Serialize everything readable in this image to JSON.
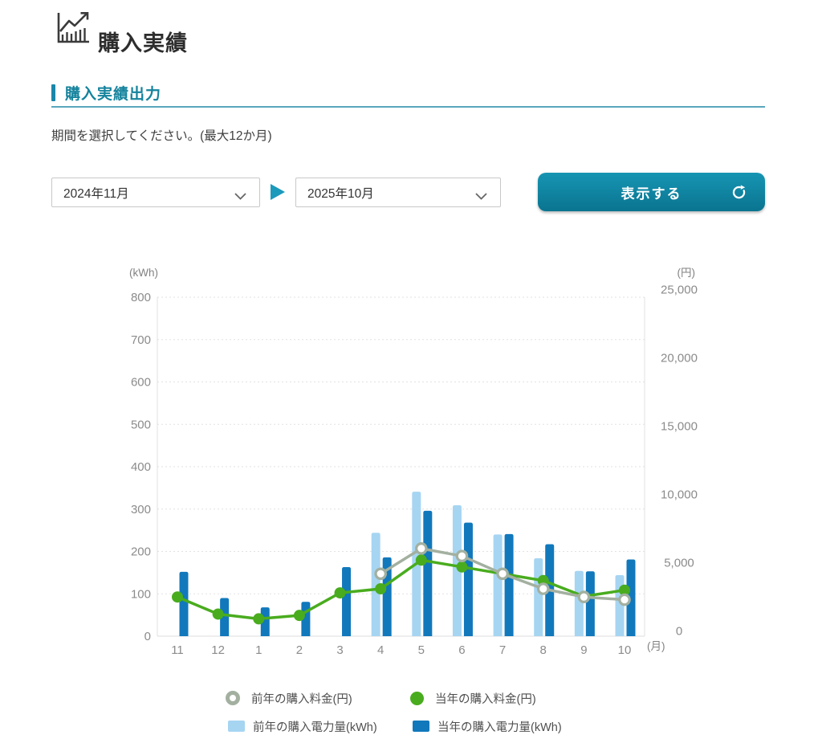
{
  "header": {
    "title": "購入実績"
  },
  "section": {
    "title": "購入実績出力"
  },
  "period": {
    "instruction": "期間を選択してください。(最大12か月)",
    "from_value": "2024年11月",
    "to_value": "2025年10月",
    "show_button_label": "表示する"
  },
  "chart_data": {
    "type": "bar-line-combo",
    "categories": [
      "11",
      "12",
      "1",
      "2",
      "3",
      "4",
      "5",
      "6",
      "7",
      "8",
      "9",
      "10"
    ],
    "x_unit": "(月)",
    "left_axis": {
      "unit": "(kWh)",
      "min": 0,
      "max": 800,
      "step": 100,
      "ticks": [
        "0",
        "100",
        "200",
        "300",
        "400",
        "500",
        "600",
        "700",
        "800"
      ],
      "applies_to": "bars"
    },
    "right_axis": {
      "unit": "(円)",
      "min": 0,
      "max": 25000,
      "step": 5000,
      "ticks": [
        "0",
        "5,000",
        "10,000",
        "15,000",
        "20,000",
        "25,000"
      ],
      "applies_to": "lines"
    },
    "grid": "horizontal-dashed",
    "legend_position": "bottom",
    "series": [
      {
        "name": "前年の購入電力量(kWh)",
        "type": "bar",
        "axis": "left",
        "slot": "left",
        "color": "#A6D5F2",
        "values": [
          null,
          null,
          null,
          null,
          null,
          244,
          341,
          309,
          240,
          184,
          154,
          144
        ]
      },
      {
        "name": "当年の購入電力量(kWh)",
        "type": "bar",
        "axis": "left",
        "slot": "right",
        "color": "#1178BC",
        "values": [
          152,
          90,
          68,
          81,
          163,
          186,
          296,
          268,
          241,
          217,
          153,
          181
        ]
      },
      {
        "name": "前年の購入料金(円)",
        "type": "line",
        "axis": "right",
        "point": "open",
        "color": "#A3B0A0",
        "values": [
          null,
          null,
          null,
          null,
          null,
          4200,
          6050,
          5500,
          4200,
          3100,
          2500,
          2300
        ]
      },
      {
        "name": "当年の購入料金(円)",
        "type": "line",
        "axis": "right",
        "point": "filled",
        "color": "#49AC1E",
        "values": [
          2500,
          1250,
          900,
          1150,
          2800,
          3100,
          5200,
          4700,
          4200,
          3700,
          2550,
          3000
        ]
      }
    ]
  },
  "legend": {
    "items": [
      {
        "label": "前年の購入料金(円)",
        "marker": "ring",
        "color": "#A3B0A0"
      },
      {
        "label": "当年の購入料金(円)",
        "marker": "circle",
        "color": "#49AC1E"
      },
      {
        "label": "前年の購入電力量(kWh)",
        "marker": "square",
        "color": "#A6D5F2"
      },
      {
        "label": "当年の購入電力量(kWh)",
        "marker": "square",
        "color": "#1178BC"
      }
    ]
  },
  "colors": {
    "accent_teal": "#15839D",
    "triangle_teal": "#1C9ABB",
    "button_gradient_top": "#1695B3",
    "button_gradient_bottom": "#0A7490"
  }
}
